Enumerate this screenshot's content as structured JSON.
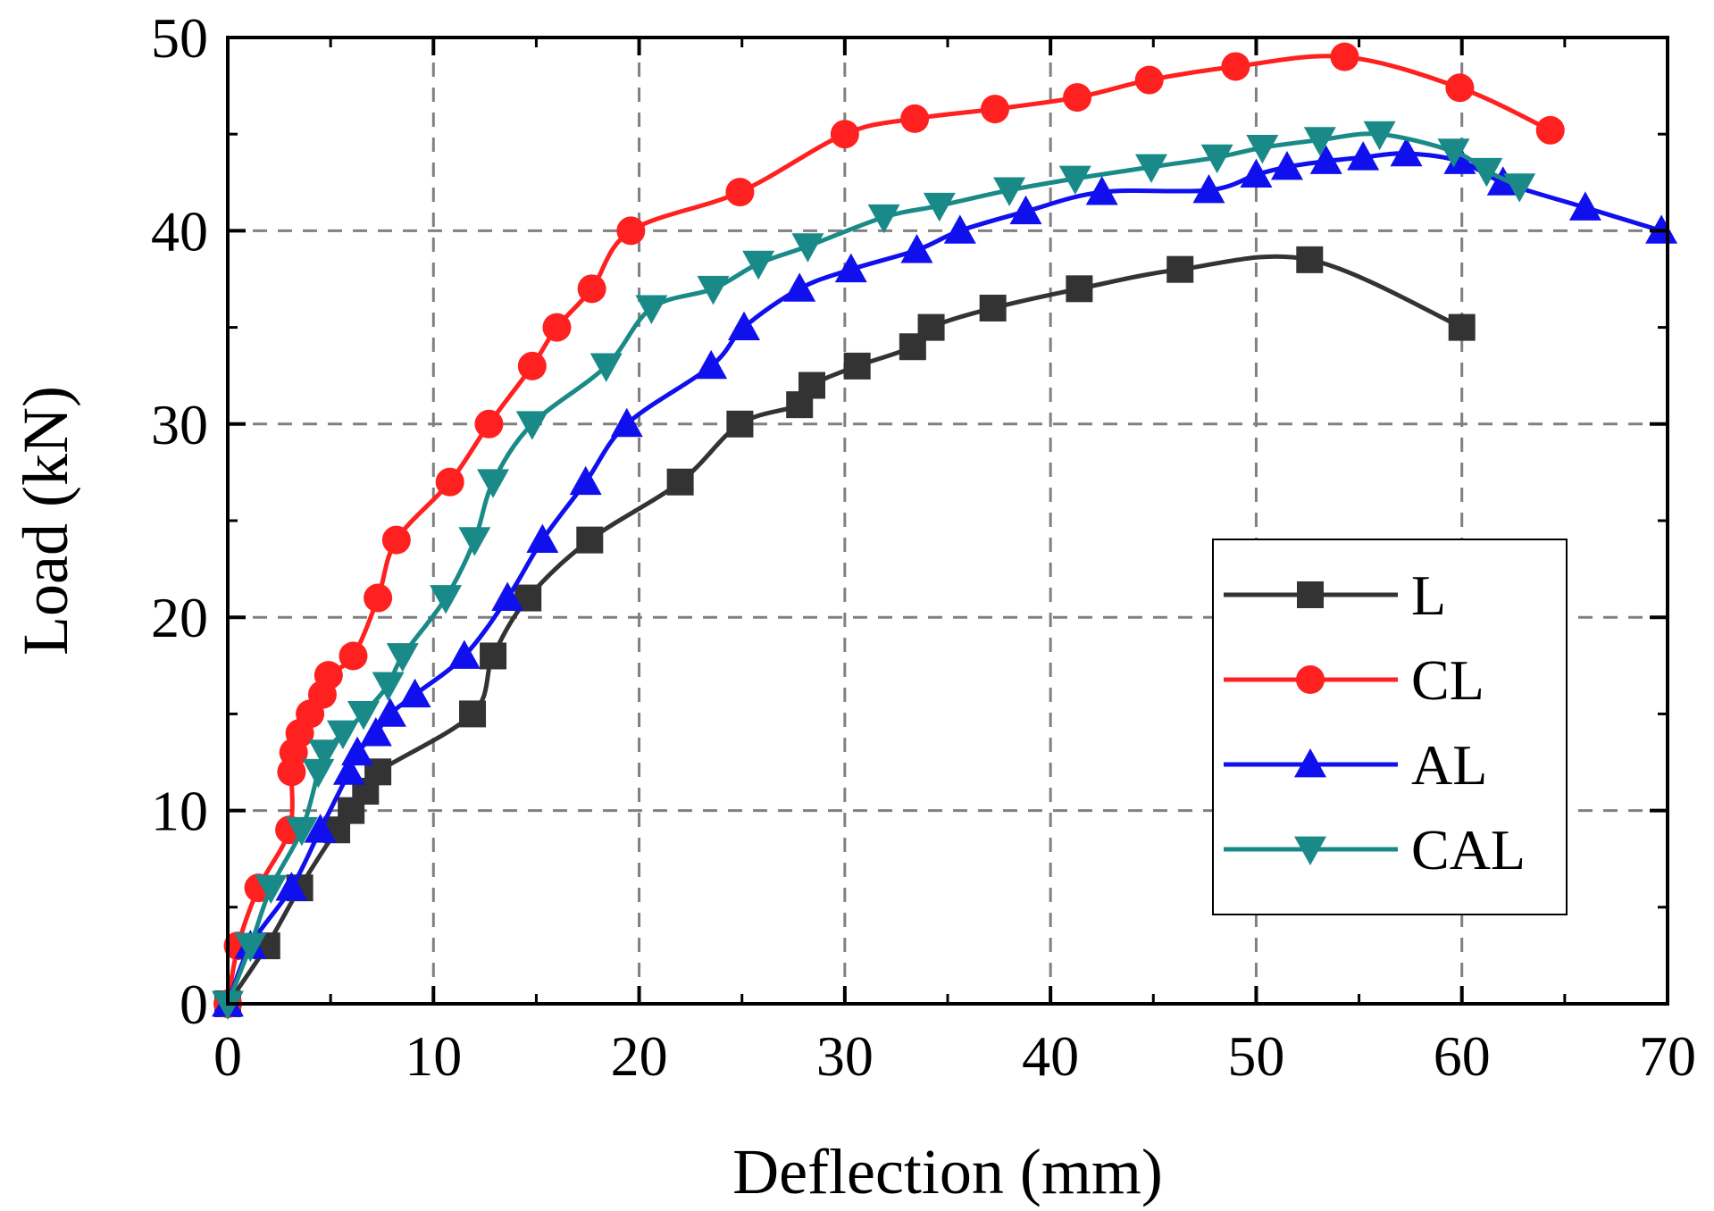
{
  "chart_data": {
    "type": "line",
    "title": "",
    "xlabel": "Deflection (mm)",
    "ylabel": "Load (kN)",
    "xlim": [
      0,
      70
    ],
    "ylim": [
      0,
      50
    ],
    "xticks": [
      0,
      10,
      20,
      30,
      40,
      50,
      60,
      70
    ],
    "yticks": [
      0,
      10,
      20,
      30,
      40,
      50
    ],
    "grid": true,
    "legend_position": "bottom-right",
    "series": [
      {
        "name": "L",
        "color": "#333333",
        "marker": "square",
        "x": [
          0,
          1.9,
          3.5,
          5.3,
          6.0,
          6.7,
          7.3,
          11.9,
          12.9,
          14.6,
          17.6,
          22.0,
          24.9,
          27.8,
          28.4,
          30.6,
          33.3,
          34.2,
          37.2,
          41.4,
          46.3,
          52.6,
          60.0
        ],
        "y": [
          0,
          3,
          6,
          9,
          10,
          11,
          12,
          15,
          18,
          21,
          24,
          27,
          30,
          31,
          32,
          33,
          34,
          35,
          36,
          37,
          38,
          38.5,
          35
        ]
      },
      {
        "name": "CL",
        "color": "#ff2020",
        "marker": "circle",
        "x": [
          0,
          0.5,
          1.5,
          3.0,
          3.1,
          3.2,
          3.5,
          4.0,
          4.6,
          4.9,
          6.1,
          7.3,
          8.2,
          10.8,
          12.7,
          14.8,
          16.0,
          17.7,
          19.6,
          24.9,
          30.0,
          33.4,
          37.3,
          41.3,
          44.8,
          49.0,
          54.3,
          59.9,
          64.3
        ],
        "y": [
          0,
          3,
          6,
          9,
          12,
          13,
          14,
          15,
          16,
          17,
          18,
          21,
          24,
          27,
          30,
          33,
          35,
          37,
          40,
          42,
          45,
          45.8,
          46.3,
          46.9,
          47.8,
          48.5,
          49,
          47.4,
          45.2
        ]
      },
      {
        "name": "AL",
        "color": "#1010ee",
        "marker": "triangle-up",
        "x": [
          0,
          1.1,
          3.1,
          4.5,
          5.9,
          6.3,
          7.2,
          7.9,
          9.1,
          11.5,
          13.6,
          15.3,
          17.4,
          19.4,
          23.5,
          25.1,
          27.8,
          30.3,
          33.5,
          35.6,
          38.8,
          42.5,
          47.7,
          50.0,
          51.5,
          53.4,
          55.2,
          57.3,
          59.9,
          62.0,
          66.0,
          69.7
        ],
        "y": [
          0,
          3,
          6,
          9,
          12,
          13,
          14,
          15,
          16,
          18,
          21,
          24,
          27,
          30,
          33,
          35,
          37,
          38,
          39,
          40,
          41,
          42,
          42.1,
          42.9,
          43.3,
          43.6,
          43.8,
          44,
          43.6,
          42.5,
          41.2,
          40
        ]
      },
      {
        "name": "CAL",
        "color": "#1a8a88",
        "marker": "triangle-down",
        "x": [
          0,
          1.1,
          2.1,
          3.6,
          4.4,
          4.7,
          5.6,
          6.6,
          7.8,
          8.5,
          10.6,
          12.0,
          12.9,
          14.8,
          18.4,
          20.6,
          23.6,
          25.8,
          28.2,
          31.9,
          34.6,
          38.0,
          41.2,
          44.9,
          48.1,
          50.3,
          53.1,
          56.0,
          59.6,
          61.2,
          62.8
        ],
        "y": [
          0,
          3,
          6,
          9,
          12,
          13,
          14,
          15,
          16.5,
          18,
          21,
          24,
          27,
          30,
          33,
          36,
          37,
          38.3,
          39.2,
          40.7,
          41.3,
          42.1,
          42.7,
          43.3,
          43.8,
          44.3,
          44.7,
          45,
          44.1,
          43.1,
          42.3
        ]
      }
    ]
  }
}
